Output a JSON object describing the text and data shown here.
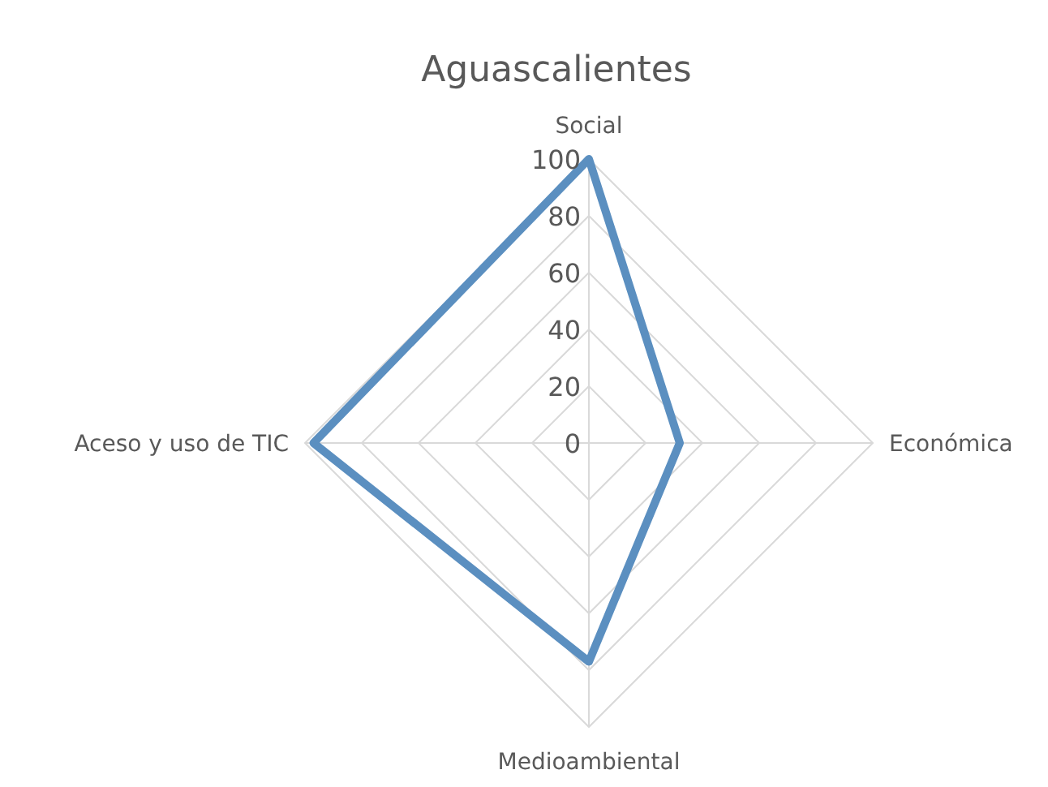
{
  "chart_data": {
    "type": "radar",
    "title": "Aguascalientes",
    "categories": [
      "Social",
      "Económica",
      "Medioambiental",
      "Aceso y uso de TIC"
    ],
    "series": [
      {
        "color": "#5b8fc0",
        "values": [
          100,
          32,
          77,
          97
        ]
      }
    ],
    "ylim": [
      0,
      100
    ],
    "yticks": [
      0,
      20,
      40,
      60,
      80,
      100
    ],
    "grid": true
  }
}
